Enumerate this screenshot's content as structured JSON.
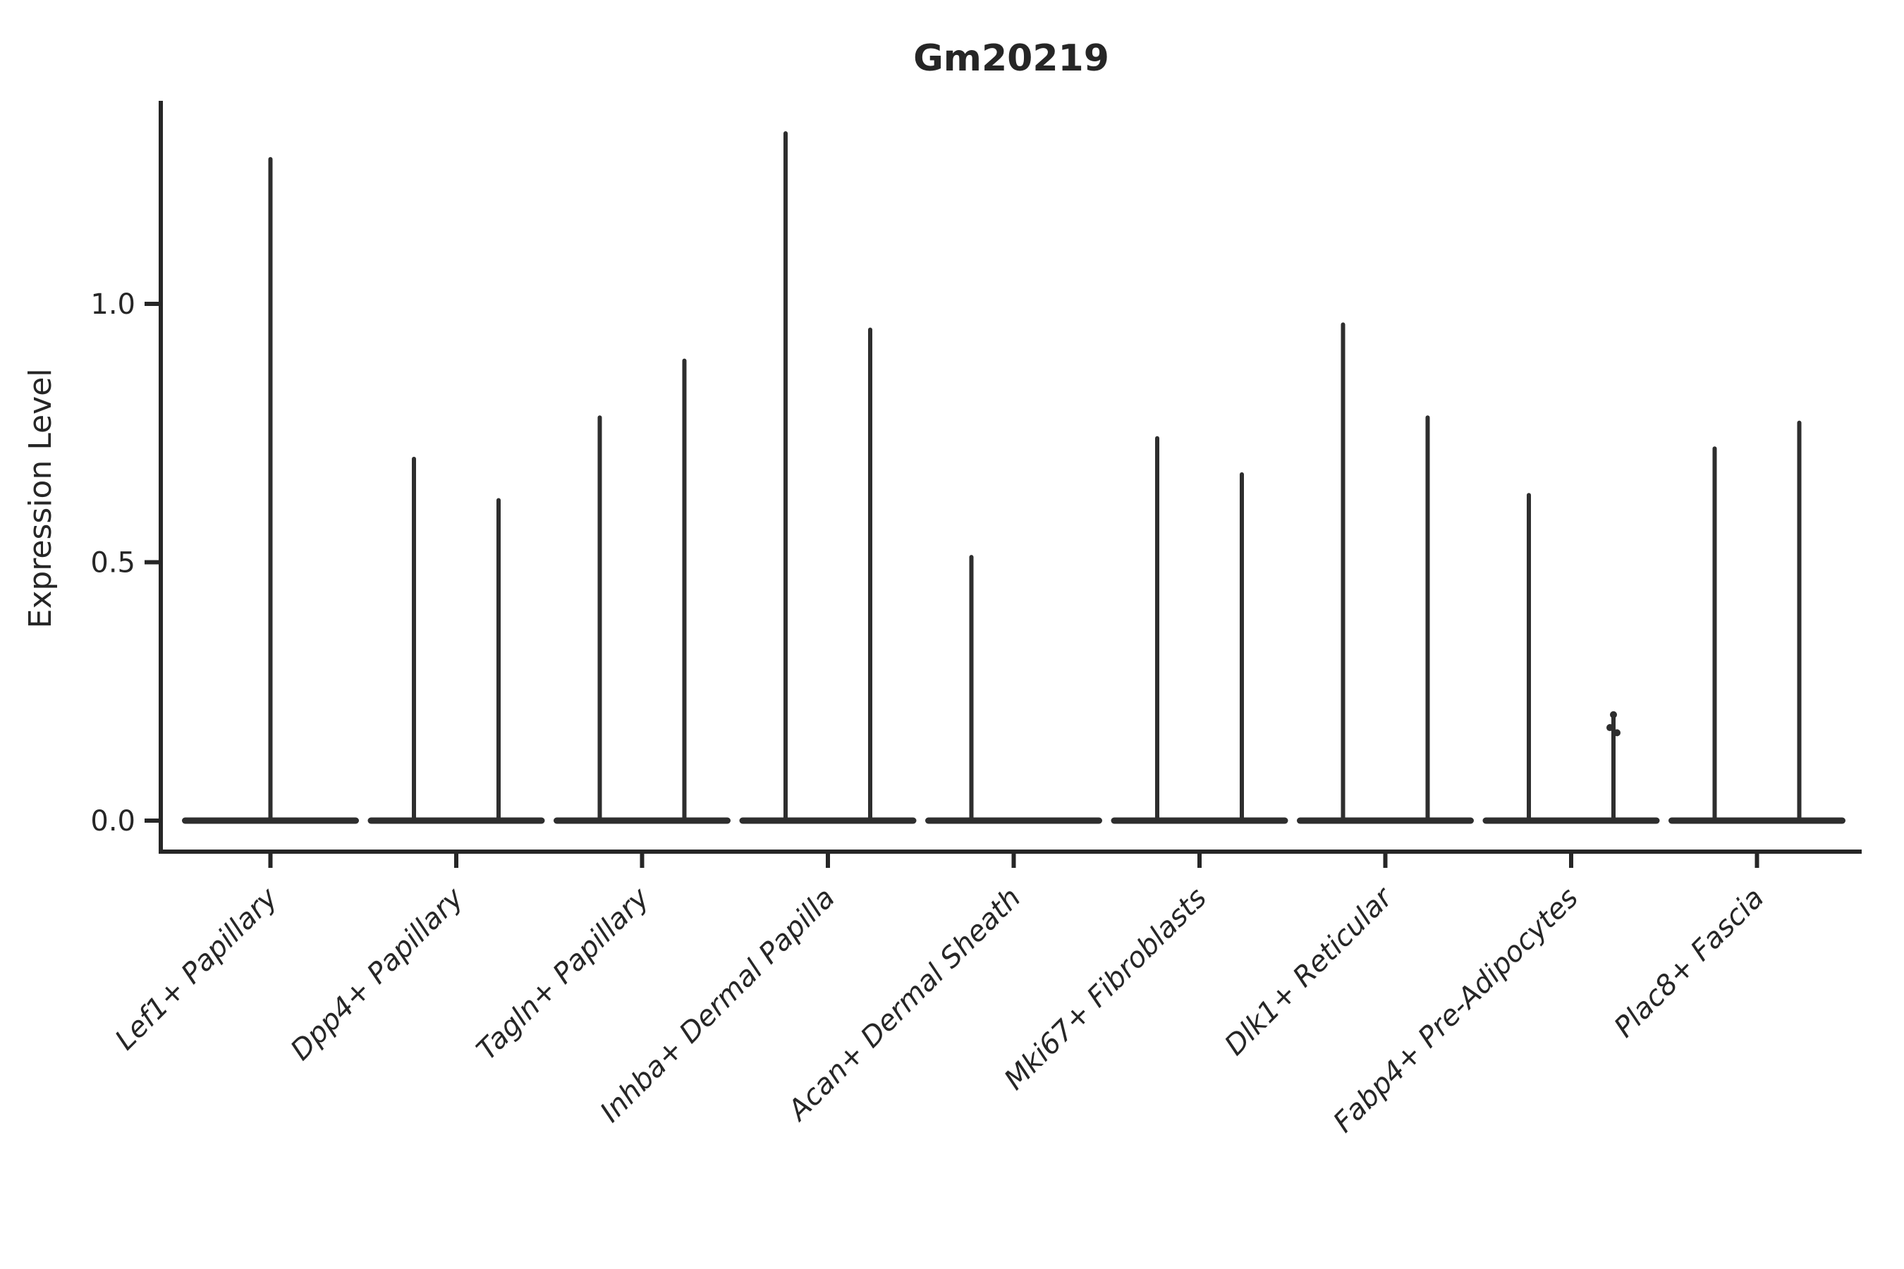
{
  "colors": {
    "ink": "#262626",
    "violin": "#2e2e2e",
    "background": "#ffffff"
  },
  "chart_data": {
    "type": "violin",
    "title": "Gm20219",
    "xlabel": "",
    "ylabel": "Expression Level",
    "yticks": [
      "0.0",
      "0.5",
      "1.0"
    ],
    "ytick_values": [
      0.0,
      0.5,
      1.0
    ],
    "ylim": [
      -0.06,
      1.39
    ],
    "grid": "off",
    "legend": "none",
    "description": "Violin plot of expression level per cell type; most cells at 0 giving flat bases with thin spikes to the max expression. Some categories contain two side-by-side violins.",
    "groups": [
      {
        "label": "Lef1+ Papillary",
        "violins": [
          {
            "position": "center",
            "max": 1.28
          }
        ]
      },
      {
        "label": "Dpp4+ Papillary",
        "violins": [
          {
            "position": "left",
            "max": 0.7
          },
          {
            "position": "right",
            "max": 0.62
          }
        ]
      },
      {
        "label": "Tagln+ Papillary",
        "violins": [
          {
            "position": "left",
            "max": 0.78
          },
          {
            "position": "right",
            "max": 0.89
          }
        ]
      },
      {
        "label": "Inhba+ Dermal Papilla",
        "violins": [
          {
            "position": "left",
            "max": 1.33
          },
          {
            "position": "right",
            "max": 0.95
          }
        ]
      },
      {
        "label": "Acan+ Dermal Sheath",
        "violins": [
          {
            "position": "left",
            "max": 0.51
          },
          {
            "position": "right",
            "max": 0.0
          }
        ]
      },
      {
        "label": "Mki67+ Fibroblasts",
        "violins": [
          {
            "position": "left",
            "max": 0.74
          },
          {
            "position": "right",
            "max": 0.67
          }
        ]
      },
      {
        "label": "Dlk1+ Reticular",
        "violins": [
          {
            "position": "left",
            "max": 0.96
          },
          {
            "position": "right",
            "max": 0.78
          }
        ]
      },
      {
        "label": "Fabp4+ Pre-Adipocytes",
        "violins": [
          {
            "position": "left",
            "max": 0.63
          },
          {
            "position": "right",
            "max": 0.2,
            "points": [
              0.205,
              0.18,
              0.17
            ]
          }
        ]
      },
      {
        "label": "Plac8+ Fascia",
        "violins": [
          {
            "position": "left",
            "max": 0.72
          },
          {
            "position": "right",
            "max": 0.77
          }
        ]
      }
    ]
  }
}
